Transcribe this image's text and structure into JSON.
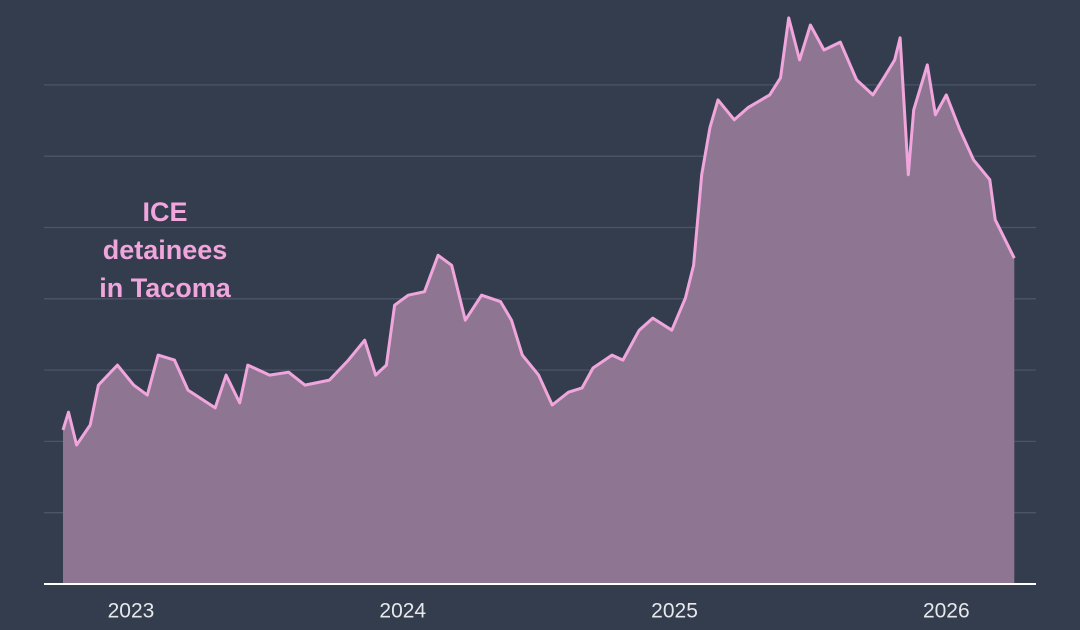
{
  "chart_data": {
    "type": "area",
    "annotation": [
      "ICE",
      "detainees",
      "in Tacoma"
    ],
    "x": [
      2022.75,
      2022.77,
      2022.8,
      2022.85,
      2022.88,
      2022.95,
      2023.01,
      2023.06,
      2023.1,
      2023.16,
      2023.21,
      2023.31,
      2023.35,
      2023.4,
      2023.43,
      2023.51,
      2023.58,
      2023.64,
      2023.73,
      2023.8,
      2023.86,
      2023.9,
      2023.94,
      2023.97,
      2024.02,
      2024.08,
      2024.13,
      2024.18,
      2024.23,
      2024.29,
      2024.36,
      2024.4,
      2024.44,
      2024.5,
      2024.55,
      2024.61,
      2024.66,
      2024.7,
      2024.77,
      2024.81,
      2024.87,
      2024.92,
      2024.99,
      2025.04,
      2025.07,
      2025.1,
      2025.13,
      2025.16,
      2025.22,
      2025.27,
      2025.35,
      2025.39,
      2025.42,
      2025.46,
      2025.5,
      2025.55,
      2025.61,
      2025.67,
      2025.73,
      2025.77,
      2025.81,
      2025.83,
      2025.86,
      2025.88,
      2025.93,
      2025.96,
      2026.0,
      2026.05,
      2026.1,
      2026.16,
      2026.18,
      2026.25
    ],
    "series": [
      {
        "color": "#f0a6dc",
        "fill": "#8e7592",
        "values": [
          2.16,
          2.41,
          1.95,
          2.23,
          2.79,
          3.07,
          2.79,
          2.65,
          3.21,
          3.14,
          2.72,
          2.47,
          2.93,
          2.54,
          3.07,
          2.93,
          2.97,
          2.79,
          2.86,
          3.14,
          3.42,
          2.93,
          3.07,
          3.91,
          4.05,
          4.1,
          4.61,
          4.47,
          3.7,
          4.05,
          3.96,
          3.7,
          3.21,
          2.93,
          2.51,
          2.69,
          2.75,
          3.03,
          3.21,
          3.14,
          3.56,
          3.73,
          3.56,
          4.01,
          4.47,
          5.74,
          6.4,
          6.79,
          6.51,
          6.68,
          6.86,
          7.1,
          7.94,
          7.35,
          7.84,
          7.49,
          7.6,
          7.07,
          6.86,
          7.1,
          7.35,
          7.66,
          5.74,
          6.65,
          7.28,
          6.58,
          6.86,
          6.37,
          5.95,
          5.67,
          5.11,
          4.57
        ]
      }
    ],
    "xlim": [
      2022.68,
      2026.33
    ],
    "xticks": [
      2023,
      2024,
      2025,
      2026
    ],
    "ylim": [
      0,
      8
    ],
    "yticks": [
      1,
      2,
      3,
      4,
      5,
      6,
      7
    ],
    "grid": true
  }
}
